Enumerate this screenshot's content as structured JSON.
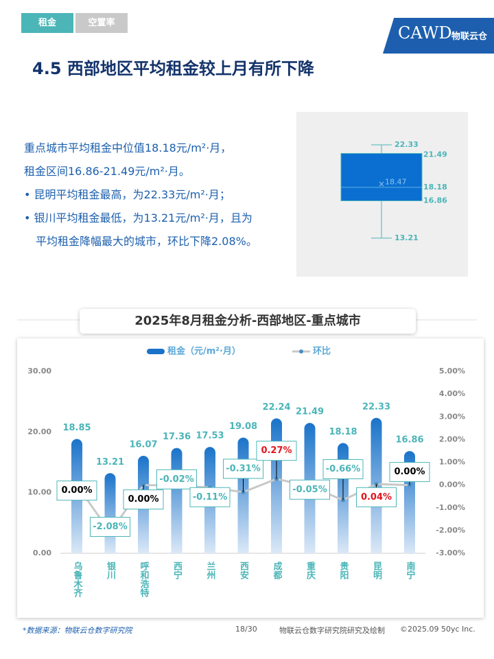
{
  "tabs": [
    "租金",
    "空置率"
  ],
  "logo": {
    "text": "CAWD",
    "brand": "物联云仓"
  },
  "heading": "4.5 西部地区平均租金较上月有所下降",
  "summary": [
    "重点城市平均租金中位值18.18元/m²·月，",
    "租金区间16.86-21.49元/m²·月。"
  ],
  "bullets": [
    "昆明平均租金最高，为22.33元/m²·月；",
    "银川平均租金最低，为13.21元/m²·月，且为",
    "平均租金降幅最大的城市，环比下降2.08%。"
  ],
  "chart_data": [
    {
      "type": "box",
      "color": "#0a6fd0",
      "max": 22.33,
      "q3": 21.49,
      "mean": 18.47,
      "median": 18.18,
      "q1": 16.86,
      "min": 13.21
    },
    {
      "type": "combo",
      "title": "2025年8月租金分析-西部地区-重点城市",
      "categories": [
        "乌鲁木齐",
        "银川",
        "呼和浩特",
        "西宁",
        "兰州",
        "西安",
        "成都",
        "重庆",
        "贵阳",
        "昆明",
        "南宁"
      ],
      "series": [
        {
          "name": "租金（元/m²·月）",
          "color": "#1a73c9",
          "values": [
            18.85,
            13.21,
            16.07,
            17.36,
            17.53,
            19.08,
            22.24,
            21.49,
            18.18,
            22.33,
            16.86
          ]
        },
        {
          "name": "环比",
          "color": "#c8c8c8",
          "axis": "y2",
          "values": [
            0,
            -2.08,
            0,
            -0.02,
            -0.11,
            -0.31,
            0.27,
            -0.05,
            -0.66,
            0.04,
            0
          ],
          "value_labels": [
            "0.00%",
            "-2.08%",
            "0.00%",
            "-0.02%",
            "-0.11%",
            "-0.31%",
            "0.27%",
            "-0.05%",
            "-0.66%",
            "0.04%",
            "0.00%"
          ]
        }
      ],
      "ylim": [
        0,
        30
      ],
      "yticks": [
        {
          "value": 0,
          "label": "0.00"
        },
        {
          "value": 10,
          "label": "10.00"
        },
        {
          "value": 20,
          "label": "20.00"
        },
        {
          "value": 30,
          "label": "30.00"
        }
      ],
      "y2lim": [
        -3,
        5
      ],
      "y2ticks": [
        {
          "value": -3,
          "label": "-3.00%"
        },
        {
          "value": -2,
          "label": "-2.00%"
        },
        {
          "value": -1,
          "label": "-1.00%"
        },
        {
          "value": 0,
          "label": "0.00%"
        },
        {
          "value": 1,
          "label": "1.00%"
        },
        {
          "value": 2,
          "label": "2.00%"
        },
        {
          "value": 3,
          "label": "3.00%"
        },
        {
          "value": 4,
          "label": "4.00%"
        },
        {
          "value": 5,
          "label": "5.00%"
        }
      ]
    }
  ],
  "footer": {
    "source": "*数据来源：物联云仓数字研究院",
    "page": "18/30",
    "credit": "物联云仓数字研究院研究及绘制",
    "copyright": "©2025.09 50yc Inc."
  }
}
